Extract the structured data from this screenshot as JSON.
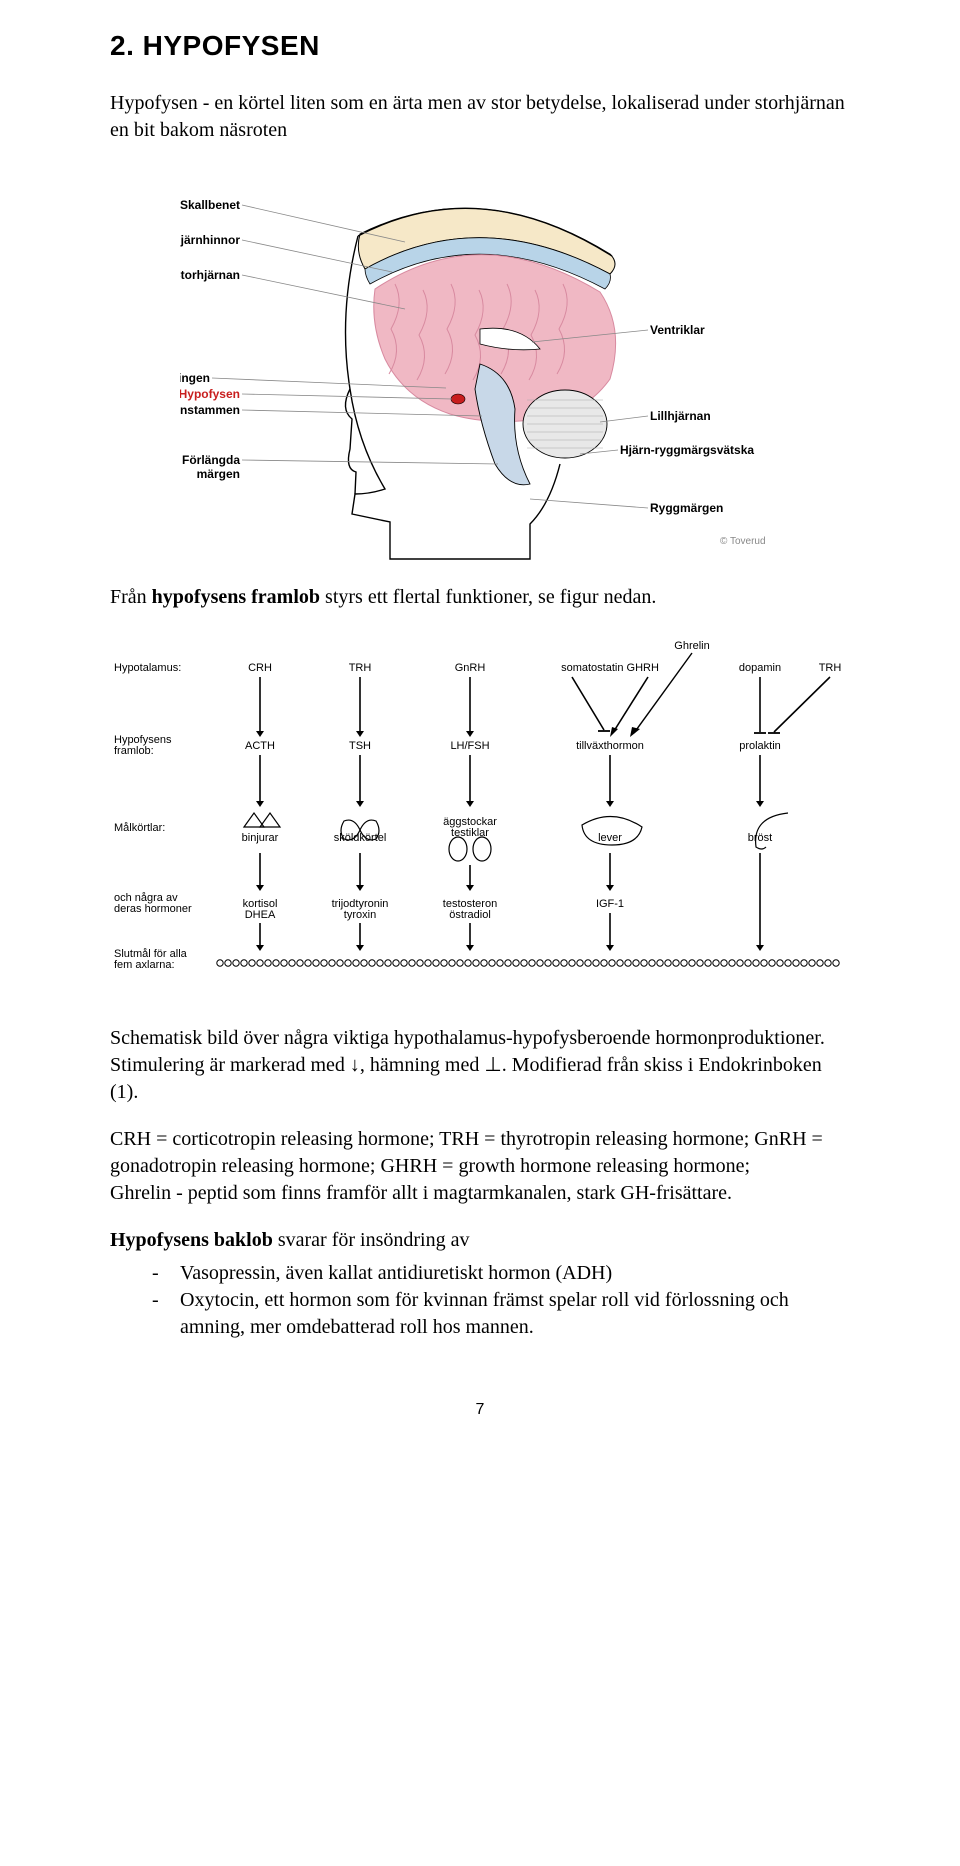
{
  "heading": "2. HYPOFYSEN",
  "intro": "Hypofysen - en körtel liten som en ärta men av stor betydelse, lokaliserad under storhjärnan en bit bakom näsroten",
  "brain_labels_left": [
    "Skallbenet",
    "Hjärnhinnor",
    "Storhjärnan",
    "Synnervskorsningen",
    "Hypofysen",
    "Hjärnstammen",
    "Förlängda märgen"
  ],
  "brain_labels_right": [
    "Ventriklar",
    "Lillhjärnan",
    "Hjärn-ryggmärgsvätska",
    "Ryggmärgen"
  ],
  "brain_copyright": "© Toverud",
  "brain_colors": {
    "skull": "#f6e8c8",
    "membrane": "#b8d4e8",
    "cortex": "#f0b8c4",
    "cortex_dark": "#d88aa0",
    "cerebellum": "#e8e8e8",
    "brainstem": "#c8d8e8",
    "line": "#888888",
    "outline": "#000000",
    "red": "#c81e1e"
  },
  "between_para_pre": "Från ",
  "between_para_bold": "hypofysens framlob",
  "between_para_post": " styrs ett flertal funktioner, se figur nedan.",
  "hormone_diagram": {
    "font": "8.5px Arial",
    "font_bold": "bold 8.5px Arial",
    "row_labels": [
      "Hypotalamus:",
      "Hypofysens framlob:",
      "Målkörtlar:",
      "och några av deras hormoner",
      "Slutmål för alla fem axlarna:"
    ],
    "top_extras": [
      "Ghrelin",
      "TRH"
    ],
    "cols": [
      {
        "hyp": "CRH",
        "framlob": "ACTH",
        "target": "binjurar",
        "hormone": "kortisol\nDHEA"
      },
      {
        "hyp": "TRH",
        "framlob": "TSH",
        "target": "sköldkörtel",
        "hormone": "trijodtyronin\ntyroxin"
      },
      {
        "hyp": "GnRH",
        "framlob": "LH/FSH",
        "target": "äggstockar\ntestiklar",
        "hormone": "testosteron\nöstradiol"
      },
      {
        "hyp": "somatostatin  GHRH",
        "framlob": "tillväxthormon",
        "target": "lever",
        "hormone": "IGF-1"
      },
      {
        "hyp": "dopamin",
        "framlob": "prolaktin",
        "target": "bröst",
        "hormone": ""
      }
    ],
    "line_color": "#000000",
    "label_color": "#000000"
  },
  "schematic_para": "Schematisk bild över några viktiga hypothalamus-hypofysberoende hormonproduktioner. Stimulering är markerad med ↓, hämning med ⊥. Modifierad från skiss i Endokrinboken (1).",
  "abbrev_para": "CRH = corticotropin releasing hormone; TRH = thyrotropin releasing hormone; GnRH = gonadotropin releasing hormone; GHRH = growth hormone releasing hormone;\nGhrelin - peptid som finns framför allt i magtarmkanalen, stark GH-frisättare.",
  "baklob_bold": "Hypofysens baklob",
  "baklob_post": " svarar för insöndring av",
  "baklob_items": [
    "Vasopressin, även kallat antidiuretiskt hormon (ADH)",
    "Oxytocin, ett hormon som för kvinnan främst spelar roll vid förlossning och amning, mer omdebatterad roll hos mannen."
  ],
  "page_number": "7"
}
